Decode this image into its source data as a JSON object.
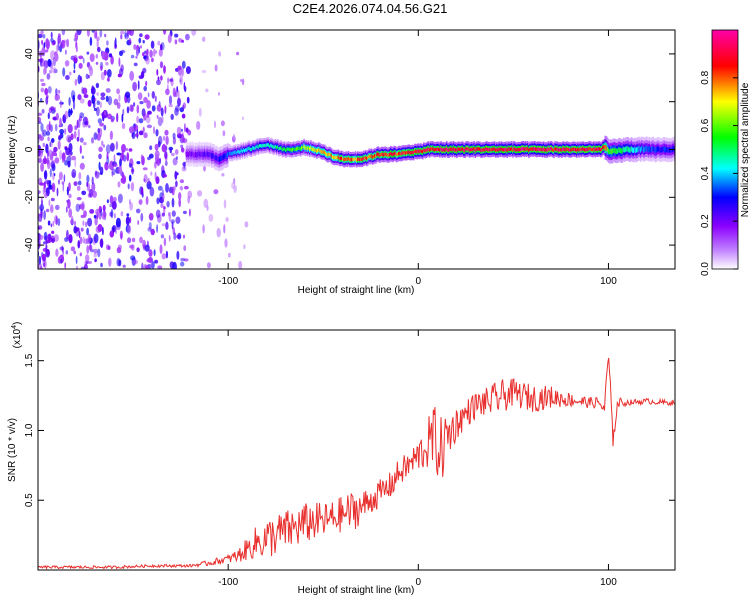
{
  "title": "C2E4.2026.074.04.56.G21",
  "chart_data": [
    {
      "type": "heatmap",
      "xlabel": "Height of straight line (km)",
      "ylabel": "Frequency (Hz)",
      "xlim": [
        -200,
        135
      ],
      "ylim": [
        -50,
        50
      ],
      "xticks": [
        -100,
        0,
        100
      ],
      "yticks": [
        -40,
        -20,
        0,
        20,
        40
      ],
      "noise_region_km": [
        -200,
        -95
      ],
      "ridge": {
        "description": "main spectral line",
        "x": [
          -120,
          -110,
          -105,
          -100,
          -95,
          -90,
          -85,
          -80,
          -75,
          -70,
          -65,
          -60,
          -55,
          -50,
          -45,
          -40,
          -35,
          -30,
          -25,
          -20,
          -15,
          -10,
          -5,
          0,
          5,
          10,
          20,
          40,
          60,
          80,
          95,
          98,
          100,
          110,
          120,
          135
        ],
        "freq": [
          -2,
          -2,
          -4,
          -2,
          -1,
          0,
          1,
          2,
          1,
          0,
          0,
          1,
          0,
          -1,
          -3,
          -4,
          -4,
          -4,
          -3,
          -2,
          -2,
          -2,
          -1,
          -1,
          0,
          0,
          0,
          0,
          0,
          0,
          0,
          1,
          -1,
          0,
          0,
          0
        ],
        "amplitude": [
          0.2,
          0.25,
          0.3,
          0.35,
          0.4,
          0.45,
          0.45,
          0.5,
          0.5,
          0.55,
          0.6,
          0.65,
          0.7,
          0.75,
          0.8,
          0.85,
          0.85,
          0.85,
          0.85,
          0.9,
          0.9,
          0.9,
          0.9,
          0.92,
          0.92,
          0.95,
          0.95,
          0.95,
          0.95,
          0.95,
          0.95,
          0.9,
          0.6,
          0.5,
          0.35,
          0.3
        ]
      },
      "colorbar": {
        "label": "Normalized spectral amplitude",
        "range": [
          0,
          1
        ],
        "ticks": [
          "0.0",
          "0.2",
          "0.4",
          "0.6",
          "0.8"
        ],
        "colors": [
          "#ffffff",
          "#8b00ff",
          "#0000ff",
          "#00ffff",
          "#00ff00",
          "#ffff00",
          "#ff0000",
          "#ff00aa"
        ]
      }
    },
    {
      "type": "line",
      "xlabel": "Height of straight line (km)",
      "ylabel": "SNR (10 * v/v)",
      "scale_label": "(x10",
      "scale_exponent": "4",
      "xlim": [
        -200,
        135
      ],
      "ylim": [
        0,
        1.72
      ],
      "xticks": [
        -100,
        0,
        100
      ],
      "yticks": [
        0.5,
        1.0,
        1.5
      ],
      "ytick_labels": [
        "0.5",
        "1.0",
        "1.5"
      ],
      "color": "#e8302e",
      "series": [
        {
          "name": "SNR",
          "x": [
            -200,
            -180,
            -160,
            -140,
            -120,
            -110,
            -100,
            -95,
            -90,
            -85,
            -80,
            -75,
            -70,
            -65,
            -60,
            -55,
            -50,
            -45,
            -40,
            -35,
            -30,
            -25,
            -20,
            -15,
            -10,
            -5,
            0,
            5,
            8,
            12,
            15,
            20,
            25,
            30,
            35,
            40,
            45,
            50,
            60,
            70,
            80,
            90,
            95,
            98,
            100,
            102,
            105,
            110,
            120,
            130,
            135
          ],
          "y": [
            0.02,
            0.02,
            0.02,
            0.03,
            0.03,
            0.05,
            0.08,
            0.1,
            0.15,
            0.2,
            0.22,
            0.25,
            0.28,
            0.3,
            0.33,
            0.35,
            0.35,
            0.37,
            0.4,
            0.42,
            0.45,
            0.5,
            0.55,
            0.6,
            0.7,
            0.75,
            0.82,
            0.9,
            0.95,
            0.85,
            0.95,
            1.05,
            1.12,
            1.18,
            1.2,
            1.22,
            1.25,
            1.27,
            1.23,
            1.24,
            1.22,
            1.2,
            1.2,
            1.15,
            1.55,
            0.95,
            1.2,
            1.2,
            1.21,
            1.2,
            1.2
          ],
          "noise_amp": [
            0.01,
            0.01,
            0.01,
            0.01,
            0.01,
            0.02,
            0.03,
            0.05,
            0.08,
            0.12,
            0.15,
            0.15,
            0.15,
            0.15,
            0.15,
            0.14,
            0.13,
            0.13,
            0.13,
            0.15,
            0.12,
            0.1,
            0.1,
            0.1,
            0.1,
            0.1,
            0.12,
            0.18,
            0.25,
            0.25,
            0.2,
            0.12,
            0.1,
            0.1,
            0.1,
            0.12,
            0.12,
            0.1,
            0.1,
            0.08,
            0.05,
            0.04,
            0.04,
            0.05,
            0.15,
            0.12,
            0.04,
            0.02,
            0.02,
            0.02,
            0.02
          ]
        }
      ]
    }
  ]
}
